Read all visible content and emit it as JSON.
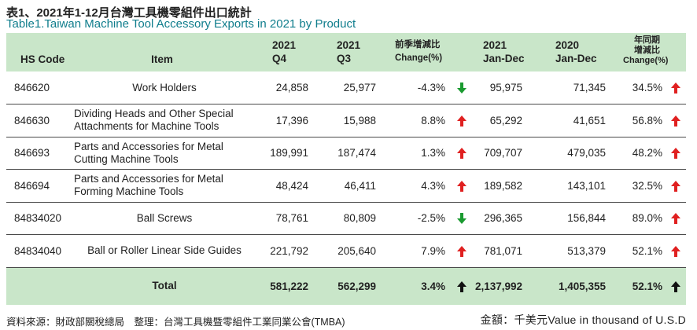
{
  "title_zh": "表1、2021年1-12月台灣工具機零組件出口統計",
  "title_en": "Table1.Taiwan Machine Tool Accessory Exports in 2021 by Product",
  "headers": {
    "hs_code": "HS Code",
    "item": "Item",
    "q4_year": "2021",
    "q4_label": "Q4",
    "q3_year": "2021",
    "q3_label": "Q3",
    "qoq_zh": "前季增減比",
    "qoq_en": "Change(%)",
    "jd21_year": "2021",
    "jd21_label": "Jan-Dec",
    "jd20_year": "2020",
    "jd20_label": "Jan-Dec",
    "yoy_zh1": "年同期",
    "yoy_zh2": "增減比",
    "yoy_en": "Change(%)"
  },
  "colors": {
    "up": "#e02020",
    "down": "#1a9a30",
    "header_bg": "#c9e6c9",
    "title_en": "#0f7d8c"
  },
  "rows": [
    {
      "code": "846620",
      "item": "Work Holders",
      "q4": "24,858",
      "q3": "25,977",
      "qoq": "-4.3%",
      "qoq_dir": "down",
      "jd21": "95,975",
      "jd20": "71,345",
      "yoy": "34.5%",
      "yoy_dir": "up"
    },
    {
      "code": "846630",
      "item": "Dividing Heads and Other Special Attachments for Machine Tools",
      "q4": "17,396",
      "q3": "15,988",
      "qoq": "8.8%",
      "qoq_dir": "up",
      "jd21": "65,292",
      "jd20": "41,651",
      "yoy": "56.8%",
      "yoy_dir": "up"
    },
    {
      "code": "846693",
      "item": "Parts and Accessories for Metal Cutting Machine Tools",
      "q4": "189,991",
      "q3": "187,474",
      "qoq": "1.3%",
      "qoq_dir": "up",
      "jd21": "709,707",
      "jd20": "479,035",
      "yoy": "48.2%",
      "yoy_dir": "up"
    },
    {
      "code": "846694",
      "item": "Parts and Accessories for Metal Forming Machine Tools",
      "q4": "48,424",
      "q3": "46,411",
      "qoq": "4.3%",
      "qoq_dir": "up",
      "jd21": "189,582",
      "jd20": "143,101",
      "yoy": "32.5%",
      "yoy_dir": "up"
    },
    {
      "code": "84834020",
      "item": "Ball Screws",
      "q4": "78,761",
      "q3": "80,809",
      "qoq": "-2.5%",
      "qoq_dir": "down",
      "jd21": "296,365",
      "jd20": "156,844",
      "yoy": "89.0%",
      "yoy_dir": "up"
    },
    {
      "code": "84834040",
      "item": "Ball or Roller Linear Side Guides",
      "q4": "221,792",
      "q3": "205,640",
      "qoq": "7.9%",
      "qoq_dir": "up",
      "jd21": "781,071",
      "jd20": "513,379",
      "yoy": "52.1%",
      "yoy_dir": "up"
    }
  ],
  "total": {
    "label": "Total",
    "q4": "581,222",
    "q3": "562,299",
    "qoq": "3.4%",
    "qoq_dir": "up",
    "jd21": "2,137,992",
    "jd20": "1,405,355",
    "yoy": "52.1%",
    "yoy_dir": "up"
  },
  "footer_source": "資料來源：財政部關稅總局　整理：台灣工具機暨零組件工業同業公會(TMBA)",
  "footer_unit": "金額：千美元Value in thousand of U.S.D"
}
